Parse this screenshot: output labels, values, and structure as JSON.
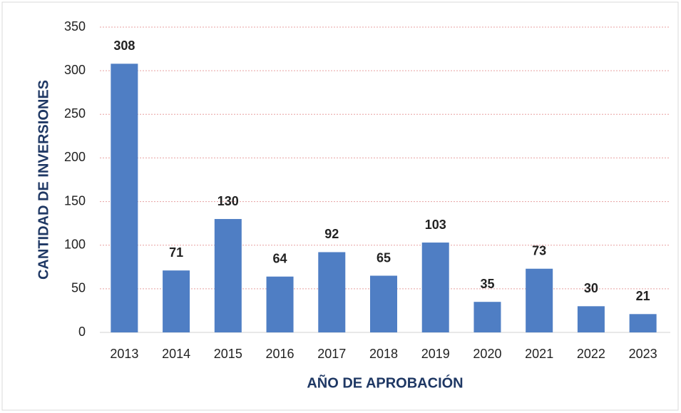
{
  "chart_data": {
    "type": "bar",
    "x_label": "AÑO DE APROBACIÓN",
    "y_label": "CANTIDAD DE INVERSIONES",
    "categories": [
      "2013",
      "2014",
      "2015",
      "2016",
      "2017",
      "2018",
      "2019",
      "2020",
      "2021",
      "2022",
      "2023"
    ],
    "values": [
      308,
      71,
      130,
      64,
      92,
      65,
      103,
      35,
      73,
      30,
      21
    ],
    "color": "#4f7ec4",
    "label_color": "#1f3864",
    "ylim": [
      0,
      350
    ],
    "yticks": [
      0,
      50,
      100,
      150,
      200,
      250,
      300,
      350
    ],
    "grid": true
  }
}
